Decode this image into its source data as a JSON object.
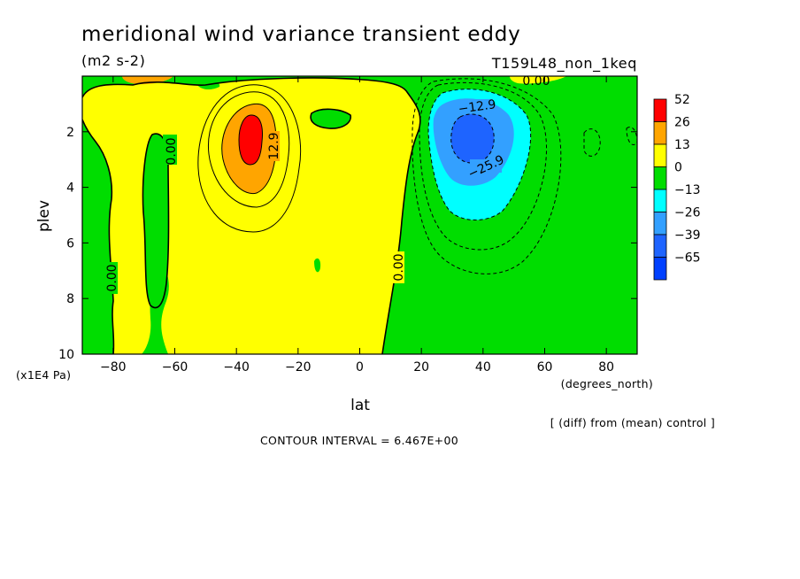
{
  "chart_data": {
    "type": "heatmap",
    "title": "meridional wind variance transient eddy",
    "units": "(m2 s-2)",
    "run_label": "T159L48_non_1keq",
    "xlabel": "lat",
    "x_units": "(degrees_north)",
    "ylabel": "plev",
    "y_units": "(x1E4 Pa)",
    "xlim": [
      -90,
      90
    ],
    "ylim": [
      10,
      0
    ],
    "x_ticks": [
      -80,
      -60,
      -40,
      -20,
      0,
      20,
      40,
      60,
      80
    ],
    "x_tick_labels": [
      "−80",
      "−60",
      "−40",
      "−20",
      "0",
      "20",
      "40",
      "60",
      "80"
    ],
    "y_ticks": [
      2,
      4,
      6,
      8,
      10
    ],
    "y_tick_labels": [
      "2",
      "4",
      "6",
      "8",
      "10"
    ],
    "colorbar": {
      "levels": [
        "52",
        "26",
        "13",
        "0",
        "−13",
        "−26",
        "−39",
        "−65"
      ],
      "colors": [
        "#ff0000",
        "#ffa500",
        "#ffff00",
        "#00dd00",
        "#00ffff",
        "#33a0ff",
        "#1e64ff",
        "#0040ff"
      ]
    },
    "contour_labels": [
      {
        "text": "12.9",
        "lat": -31,
        "plev": 3.0
      },
      {
        "text": "0.00",
        "lat": -64,
        "plev": 2.8
      },
      {
        "text": "0.00",
        "lat": -81,
        "plev": 7.5
      },
      {
        "text": "0.00",
        "lat": 12,
        "plev": 7.0
      },
      {
        "text": "0.00",
        "lat": 58,
        "plev": 0.2
      },
      {
        "text": "−12.9",
        "lat": 37,
        "plev": 1.2
      },
      {
        "text": "−25.9",
        "lat": 40,
        "plev": 3.5
      }
    ],
    "features": [
      {
        "name": "positive maximum",
        "lat": -35,
        "plev": 2.2,
        "approx_value": 45
      },
      {
        "name": "negative minimum",
        "lat": 35,
        "plev": 2.5,
        "approx_value": -55
      }
    ],
    "grid": false,
    "legend_position": "right"
  },
  "note": "[ (diff) from (mean) control ]",
  "contour_interval": "CONTOUR INTERVAL = 6.467E+00"
}
